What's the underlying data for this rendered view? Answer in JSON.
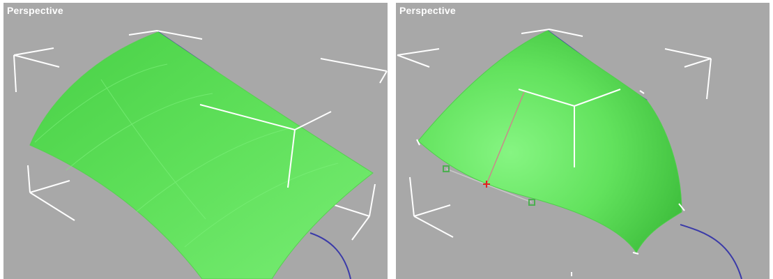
{
  "viewports": {
    "left": {
      "label": "Perspective"
    },
    "right": {
      "label": "Perspective"
    }
  },
  "colors": {
    "viewport_background": "#a8a8a8",
    "surface": "#5fe05a",
    "surface_highlight": "#7cf07a",
    "wire": "#ffffff",
    "spline": "#3a3aa8",
    "handle": "#4caf50",
    "vertex_selected": "#e02020"
  }
}
